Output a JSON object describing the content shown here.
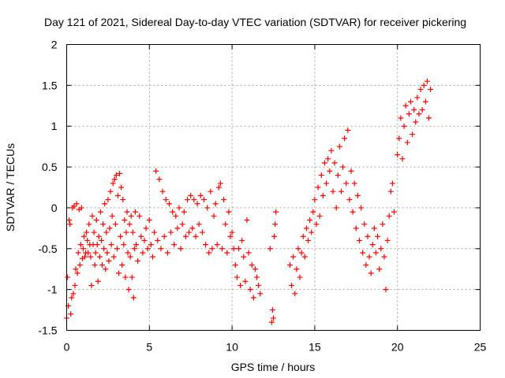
{
  "chart_data": {
    "type": "scatter",
    "title": "Day 121 of 2021, Sidereal Day-to-day VTEC variation (SDTVAR) for receiver pickering",
    "xlabel": "GPS time / hours",
    "ylabel": "SDTVAR / TECUs",
    "xlim": [
      0,
      25
    ],
    "ylim": [
      -1.5,
      2
    ],
    "x_ticks": [
      0,
      5,
      10,
      15,
      20,
      25
    ],
    "y_ticks": [
      -1.5,
      -1,
      -0.5,
      0,
      0.5,
      1,
      1.5,
      2
    ],
    "x_tick_labels": [
      "0",
      "5",
      "10",
      "15",
      "20",
      "25"
    ],
    "y_tick_labels": [
      "-1.5",
      "-1",
      "-0.5",
      "0",
      "0.5",
      "1",
      "1.5",
      "2"
    ],
    "grid": true,
    "marker": "plus",
    "color": "#ff0000",
    "series": [
      {
        "points": [
          [
            0.0,
            -1.35
          ],
          [
            0.05,
            -0.85
          ],
          [
            0.1,
            -1.2
          ],
          [
            0.15,
            -0.15
          ],
          [
            0.2,
            -0.2
          ],
          [
            0.25,
            -1.3
          ],
          [
            0.3,
            -1.1
          ],
          [
            0.35,
            0.0
          ],
          [
            0.4,
            -1.05
          ],
          [
            0.45,
            0.02
          ],
          [
            0.5,
            -0.95
          ],
          [
            0.55,
            -0.75
          ],
          [
            0.6,
            0.05
          ],
          [
            0.65,
            -0.8
          ],
          [
            0.7,
            -0.55
          ],
          [
            0.75,
            -0.02
          ],
          [
            0.8,
            -0.7
          ],
          [
            0.85,
            -0.45
          ],
          [
            0.9,
            0.0
          ],
          [
            0.95,
            -0.62
          ],
          [
            1.0,
            -0.5
          ],
          [
            1.05,
            -0.35
          ],
          [
            1.1,
            -0.6
          ],
          [
            1.15,
            -0.55
          ],
          [
            1.2,
            -0.3
          ],
          [
            1.25,
            -0.4
          ],
          [
            1.3,
            -0.55
          ],
          [
            1.35,
            -0.2
          ],
          [
            1.4,
            -0.45
          ],
          [
            1.45,
            -0.6
          ],
          [
            1.5,
            -0.95
          ],
          [
            1.55,
            -0.1
          ],
          [
            1.6,
            -0.45
          ],
          [
            1.65,
            -0.3
          ],
          [
            1.7,
            -0.7
          ],
          [
            1.75,
            -0.55
          ],
          [
            1.8,
            -0.15
          ],
          [
            1.85,
            -0.45
          ],
          [
            1.9,
            -0.9
          ],
          [
            1.95,
            -0.35
          ],
          [
            2.0,
            -0.6
          ],
          [
            2.05,
            -0.05
          ],
          [
            2.1,
            -0.4
          ],
          [
            2.15,
            -0.7
          ],
          [
            2.2,
            -0.2
          ],
          [
            2.25,
            -0.5
          ],
          [
            2.3,
            0.05
          ],
          [
            2.35,
            -0.75
          ],
          [
            2.4,
            -0.3
          ],
          [
            2.45,
            -0.55
          ],
          [
            2.5,
            0.1
          ],
          [
            2.55,
            -0.65
          ],
          [
            2.6,
            -0.25
          ],
          [
            2.65,
            0.2
          ],
          [
            2.7,
            -0.45
          ],
          [
            2.75,
            -0.1
          ],
          [
            2.8,
            0.3
          ],
          [
            2.85,
            -0.6
          ],
          [
            2.9,
            0.35
          ],
          [
            2.95,
            -0.2
          ],
          [
            3.0,
            0.4
          ],
          [
            3.05,
            -0.5
          ],
          [
            3.1,
            0.15
          ],
          [
            3.15,
            -0.8
          ],
          [
            3.2,
            0.42
          ],
          [
            3.25,
            -0.35
          ],
          [
            3.3,
            0.25
          ],
          [
            3.35,
            -0.7
          ],
          [
            3.4,
            0.1
          ],
          [
            3.45,
            -0.45
          ],
          [
            3.5,
            -0.15
          ],
          [
            3.55,
            -0.85
          ],
          [
            3.6,
            -0.3
          ],
          [
            3.65,
            -0.05
          ],
          [
            3.7,
            -0.55
          ],
          [
            3.75,
            -1.0
          ],
          [
            3.8,
            -0.2
          ],
          [
            3.85,
            -0.6
          ],
          [
            3.9,
            -0.1
          ],
          [
            3.95,
            -0.85
          ],
          [
            4.0,
            -0.3
          ],
          [
            4.05,
            -1.1
          ],
          [
            4.1,
            -0.5
          ],
          [
            4.15,
            -0.05
          ],
          [
            4.2,
            -0.45
          ],
          [
            4.3,
            -0.65
          ],
          [
            4.4,
            -0.1
          ],
          [
            4.5,
            -0.35
          ],
          [
            4.6,
            -0.55
          ],
          [
            4.7,
            -0.4
          ],
          [
            4.8,
            -0.25
          ],
          [
            4.9,
            -0.5
          ],
          [
            5.0,
            -0.15
          ],
          [
            5.1,
            -0.45
          ],
          [
            5.2,
            -0.6
          ],
          [
            5.3,
            -0.3
          ],
          [
            5.4,
            0.45
          ],
          [
            5.5,
            -0.4
          ],
          [
            5.6,
            0.35
          ],
          [
            5.7,
            -0.5
          ],
          [
            5.8,
            0.2
          ],
          [
            5.9,
            -0.35
          ],
          [
            6.0,
            0.1
          ],
          [
            6.1,
            -0.55
          ],
          [
            6.2,
            0.05
          ],
          [
            6.3,
            -0.3
          ],
          [
            6.4,
            -0.05
          ],
          [
            6.5,
            -0.45
          ],
          [
            6.6,
            -0.1
          ],
          [
            6.7,
            -0.25
          ],
          [
            6.8,
            0.0
          ],
          [
            6.9,
            -0.5
          ],
          [
            7.0,
            -0.2
          ],
          [
            7.1,
            -0.05
          ],
          [
            7.2,
            -0.35
          ],
          [
            7.3,
            0.1
          ],
          [
            7.4,
            -0.3
          ],
          [
            7.5,
            0.15
          ],
          [
            7.6,
            -0.25
          ],
          [
            7.7,
            0.1
          ],
          [
            7.8,
            -0.35
          ],
          [
            7.9,
            0.05
          ],
          [
            8.0,
            -0.2
          ],
          [
            8.1,
            0.15
          ],
          [
            8.2,
            -0.3
          ],
          [
            8.3,
            0.1
          ],
          [
            8.4,
            -0.45
          ],
          [
            8.5,
            0.0
          ],
          [
            8.6,
            -0.55
          ],
          [
            8.7,
            0.2
          ],
          [
            8.8,
            -0.5
          ],
          [
            8.9,
            -0.1
          ],
          [
            9.0,
            0.05
          ],
          [
            9.1,
            -0.45
          ],
          [
            9.2,
            0.25
          ],
          [
            9.3,
            0.3
          ],
          [
            9.4,
            -0.5
          ],
          [
            9.5,
            0.1
          ],
          [
            9.6,
            -0.2
          ],
          [
            9.7,
            -0.55
          ],
          [
            9.8,
            -0.05
          ],
          [
            9.9,
            -0.35
          ],
          [
            10.0,
            -0.3
          ],
          [
            10.1,
            -0.5
          ],
          [
            10.2,
            -0.7
          ],
          [
            10.3,
            -0.85
          ],
          [
            10.4,
            -0.5
          ],
          [
            10.5,
            -0.95
          ],
          [
            10.6,
            -0.4
          ],
          [
            10.7,
            -0.6
          ],
          [
            10.8,
            -0.9
          ],
          [
            10.9,
            -0.15
          ],
          [
            11.0,
            -0.55
          ],
          [
            11.1,
            -1.0
          ],
          [
            11.2,
            -0.7
          ],
          [
            11.3,
            -1.1
          ],
          [
            11.4,
            -0.75
          ],
          [
            11.5,
            -0.85
          ],
          [
            11.6,
            -0.95
          ],
          [
            11.7,
            -1.05
          ],
          [
            12.3,
            -0.5
          ],
          [
            12.4,
            -1.4
          ],
          [
            12.45,
            -1.25
          ],
          [
            12.5,
            -1.35
          ],
          [
            12.55,
            -0.35
          ],
          [
            12.6,
            -0.2
          ],
          [
            12.65,
            -0.05
          ],
          [
            13.5,
            -0.7
          ],
          [
            13.6,
            -0.95
          ],
          [
            13.7,
            -0.6
          ],
          [
            13.8,
            -1.05
          ],
          [
            13.9,
            -0.75
          ],
          [
            14.0,
            -0.5
          ],
          [
            14.1,
            -0.85
          ],
          [
            14.2,
            -0.55
          ],
          [
            14.3,
            -0.35
          ],
          [
            14.4,
            -0.6
          ],
          [
            14.5,
            -0.25
          ],
          [
            14.6,
            -0.4
          ],
          [
            14.7,
            -0.15
          ],
          [
            14.8,
            -0.3
          ],
          [
            14.9,
            -0.05
          ],
          [
            15.0,
            0.1
          ],
          [
            15.1,
            -0.2
          ],
          [
            15.2,
            0.25
          ],
          [
            15.3,
            -0.1
          ],
          [
            15.4,
            0.4
          ],
          [
            15.5,
            0.15
          ],
          [
            15.6,
            0.55
          ],
          [
            15.7,
            0.3
          ],
          [
            15.8,
            0.6
          ],
          [
            15.9,
            0.45
          ],
          [
            16.0,
            0.7
          ],
          [
            16.1,
            0.2
          ],
          [
            16.2,
            0.55
          ],
          [
            16.3,
            0.0
          ],
          [
            16.4,
            0.4
          ],
          [
            16.5,
            0.75
          ],
          [
            16.6,
            0.2
          ],
          [
            16.7,
            0.5
          ],
          [
            16.8,
            0.85
          ],
          [
            16.9,
            0.3
          ],
          [
            17.0,
            0.95
          ],
          [
            17.1,
            0.1
          ],
          [
            17.2,
            0.45
          ],
          [
            17.3,
            -0.05
          ],
          [
            17.4,
            0.3
          ],
          [
            17.5,
            -0.25
          ],
          [
            17.6,
            0.15
          ],
          [
            17.7,
            -0.4
          ],
          [
            17.8,
            0.0
          ],
          [
            17.9,
            -0.55
          ],
          [
            18.0,
            -0.2
          ],
          [
            18.1,
            -0.7
          ],
          [
            18.2,
            -0.35
          ],
          [
            18.3,
            -0.6
          ],
          [
            18.4,
            -0.8
          ],
          [
            18.5,
            -0.45
          ],
          [
            18.6,
            -0.25
          ],
          [
            18.7,
            -0.55
          ],
          [
            18.8,
            -0.35
          ],
          [
            18.9,
            -0.75
          ],
          [
            19.0,
            -0.5
          ],
          [
            19.1,
            -0.2
          ],
          [
            19.2,
            -0.6
          ],
          [
            19.3,
            -1.0
          ],
          [
            19.4,
            -0.4
          ],
          [
            19.5,
            -0.1
          ],
          [
            19.6,
            0.2
          ],
          [
            19.7,
            0.3
          ],
          [
            19.8,
            -0.05
          ],
          [
            20.0,
            0.65
          ],
          [
            20.1,
            0.85
          ],
          [
            20.2,
            1.1
          ],
          [
            20.3,
            0.6
          ],
          [
            20.4,
            1.0
          ],
          [
            20.5,
            1.25
          ],
          [
            20.6,
            0.8
          ],
          [
            20.7,
            1.15
          ],
          [
            20.8,
            1.3
          ],
          [
            20.9,
            0.9
          ],
          [
            21.0,
            1.2
          ],
          [
            21.1,
            1.05
          ],
          [
            21.2,
            1.35
          ],
          [
            21.3,
            1.15
          ],
          [
            21.4,
            1.45
          ],
          [
            21.5,
            1.2
          ],
          [
            21.6,
            1.5
          ],
          [
            21.7,
            1.3
          ],
          [
            21.8,
            1.55
          ],
          [
            21.9,
            1.1
          ],
          [
            22.0,
            1.45
          ]
        ]
      }
    ]
  }
}
